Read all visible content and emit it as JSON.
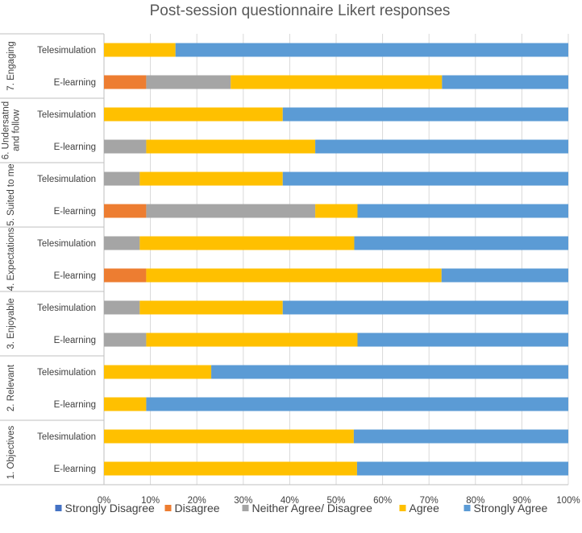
{
  "chart_data": {
    "type": "bar",
    "orientation": "horizontal",
    "stacked": "percent",
    "title": "Post-session questionnaire Likert responses",
    "xlim": [
      0,
      100
    ],
    "x_ticks": [
      "0%",
      "10%",
      "20%",
      "30%",
      "40%",
      "50%",
      "60%",
      "70%",
      "80%",
      "90%",
      "100%"
    ],
    "legend_position": "bottom",
    "series_colors": [
      "#4472C4",
      "#ED7D31",
      "#A5A5A5",
      "#FFC000",
      "#5B9BD5"
    ],
    "series": [
      {
        "name": "Strongly Disagree"
      },
      {
        "name": "Disagree"
      },
      {
        "name": "Neither Agree/ Disagree"
      },
      {
        "name": "Agree"
      },
      {
        "name": "Strongly Agree"
      }
    ],
    "groups": [
      {
        "name": "7. Engaging",
        "label_lines": [
          "7. Engaging"
        ],
        "rows": [
          {
            "label": "Telesimulation",
            "values": [
              0,
              0,
              0,
              15.4,
              84.6
            ]
          },
          {
            "label": "E-learning",
            "values": [
              0,
              9.1,
              18.2,
              45.5,
              27.2
            ]
          }
        ]
      },
      {
        "name": "6. Undersatnd and follow",
        "label_lines": [
          "6. Undersatnd",
          "and follow"
        ],
        "rows": [
          {
            "label": "Telesimulation",
            "values": [
              0,
              0,
              0,
              38.5,
              61.5
            ]
          },
          {
            "label": "E-learning",
            "values": [
              0,
              0,
              9.1,
              36.4,
              54.5
            ]
          }
        ]
      },
      {
        "name": "5. Suited to me",
        "label_lines": [
          "5. Suited to me"
        ],
        "rows": [
          {
            "label": "Telesimulation",
            "values": [
              0,
              0,
              7.7,
              30.8,
              61.5
            ]
          },
          {
            "label": "E-learning",
            "values": [
              0,
              9.1,
              36.4,
              9.1,
              45.4
            ]
          }
        ]
      },
      {
        "name": "4. Expectations",
        "label_lines": [
          "4. Expectations"
        ],
        "rows": [
          {
            "label": "Telesimulation",
            "values": [
              0,
              0,
              7.7,
              46.2,
              46.1
            ]
          },
          {
            "label": "E-learning",
            "values": [
              0,
              9.1,
              0,
              63.6,
              27.3
            ]
          }
        ]
      },
      {
        "name": "3. Enjoyable",
        "label_lines": [
          "3. Enjoyable"
        ],
        "rows": [
          {
            "label": "Telesimulation",
            "values": [
              0,
              0,
              7.7,
              30.8,
              61.5
            ]
          },
          {
            "label": "E-learning",
            "values": [
              0,
              0,
              9.1,
              45.5,
              45.4
            ]
          }
        ]
      },
      {
        "name": "2. Relevant",
        "label_lines": [
          "2. Relevant"
        ],
        "rows": [
          {
            "label": "Telesimulation",
            "values": [
              0,
              0,
              0,
              23.1,
              76.9
            ]
          },
          {
            "label": "E-learning",
            "values": [
              0,
              0,
              0,
              9.1,
              90.9
            ]
          }
        ]
      },
      {
        "name": "1. Objectives",
        "label_lines": [
          "1. Objectives"
        ],
        "rows": [
          {
            "label": "Telesimulation",
            "values": [
              0,
              0,
              0,
              53.8,
              46.2
            ]
          },
          {
            "label": "E-learning",
            "values": [
              0,
              0,
              0,
              54.5,
              45.5
            ]
          }
        ]
      }
    ]
  }
}
